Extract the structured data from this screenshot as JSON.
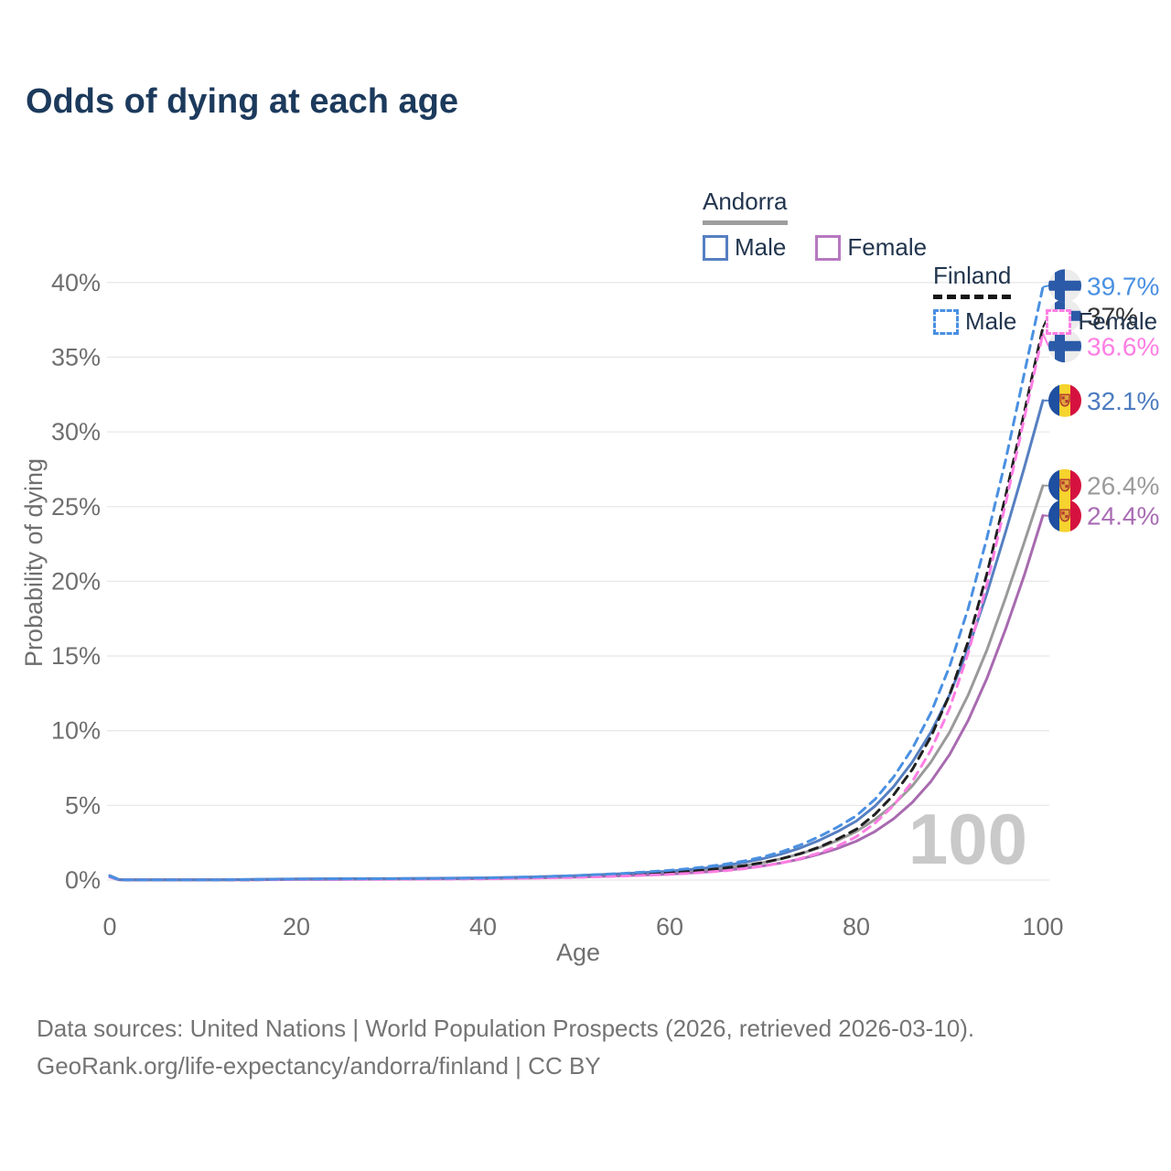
{
  "title": "Odds of dying at each age",
  "legend": {
    "groups": [
      {
        "country": "Andorra",
        "line_style": "solid",
        "underline_color": "#9e9e9e",
        "items": [
          {
            "label": "Male",
            "color": "#567fc1"
          },
          {
            "label": "Female",
            "color": "#b778c0"
          }
        ]
      },
      {
        "country": "Finland",
        "line_style": "dashed",
        "underline_color": "#161616",
        "items": [
          {
            "label": "Male",
            "color": "#4a90e2"
          },
          {
            "label": "Female",
            "color": "#ff7ee3"
          }
        ]
      }
    ]
  },
  "chart_data": {
    "type": "line",
    "xlabel": "Age",
    "ylabel": "Probability of dying",
    "xlim": [
      0,
      100
    ],
    "ylim": [
      0,
      40
    ],
    "x_ticks": [
      0,
      20,
      40,
      60,
      80,
      100
    ],
    "y_ticks": [
      0,
      5,
      10,
      15,
      20,
      25,
      30,
      35,
      40
    ],
    "y_tick_suffix": "%",
    "grid": "horizontal",
    "watermark": "100",
    "ages": [
      0,
      1,
      2,
      5,
      10,
      15,
      20,
      25,
      30,
      35,
      40,
      45,
      50,
      55,
      60,
      62,
      64,
      66,
      68,
      70,
      72,
      74,
      76,
      78,
      80,
      82,
      84,
      86,
      88,
      90,
      92,
      94,
      96,
      98,
      100
    ],
    "series": [
      {
        "id": "andorra-total",
        "country": "Andorra",
        "sex": "Both sexes",
        "color": "#9a9a9a",
        "dash": false,
        "flag": "andorra",
        "end_label": "26.4%",
        "end_label_color": "#9b9b9b",
        "values": [
          0.27,
          0.03,
          0.02,
          0.02,
          0.02,
          0.03,
          0.06,
          0.07,
          0.08,
          0.1,
          0.12,
          0.17,
          0.25,
          0.36,
          0.5,
          0.58,
          0.68,
          0.81,
          0.97,
          1.17,
          1.43,
          1.76,
          2.16,
          2.65,
          3.25,
          4.05,
          5.05,
          6.3,
          7.9,
          9.9,
          12.4,
          15.4,
          18.9,
          22.6,
          26.4
        ]
      },
      {
        "id": "andorra-female",
        "country": "Andorra",
        "sex": "Female",
        "color": "#a86ab0",
        "dash": false,
        "flag": "andorra",
        "end_label": "24.4%",
        "end_label_color": "#a96cb4",
        "values": [
          0.24,
          0.02,
          0.01,
          0.01,
          0.01,
          0.02,
          0.04,
          0.05,
          0.06,
          0.08,
          0.1,
          0.14,
          0.2,
          0.29,
          0.4,
          0.47,
          0.55,
          0.66,
          0.79,
          0.95,
          1.15,
          1.41,
          1.73,
          2.12,
          2.6,
          3.25,
          4.1,
          5.2,
          6.6,
          8.4,
          10.7,
          13.5,
          16.8,
          20.4,
          24.4
        ]
      },
      {
        "id": "andorra-male",
        "country": "Andorra",
        "sex": "Male",
        "color": "#567fc1",
        "dash": false,
        "flag": "andorra",
        "end_label": "32.1%",
        "end_label_color": "#4d7cc0",
        "values": [
          0.3,
          0.03,
          0.02,
          0.02,
          0.02,
          0.04,
          0.08,
          0.09,
          0.1,
          0.12,
          0.15,
          0.21,
          0.3,
          0.43,
          0.6,
          0.7,
          0.82,
          0.98,
          1.18,
          1.43,
          1.75,
          2.15,
          2.65,
          3.25,
          3.95,
          4.95,
          6.25,
          7.9,
          9.9,
          12.4,
          15.5,
          19.2,
          23.3,
          27.6,
          32.1
        ]
      },
      {
        "id": "finland-total",
        "country": "Finland",
        "sex": "Both sexes",
        "color": "#1f1f1f",
        "dash": true,
        "flag": "finland",
        "end_label": "37%",
        "end_label_color": "#333333",
        "values": [
          0.22,
          0.02,
          0.01,
          0.01,
          0.01,
          0.02,
          0.05,
          0.06,
          0.07,
          0.09,
          0.11,
          0.16,
          0.24,
          0.35,
          0.5,
          0.58,
          0.68,
          0.81,
          0.97,
          1.17,
          1.43,
          1.77,
          2.2,
          2.75,
          3.4,
          4.4,
          5.7,
          7.4,
          9.6,
          12.4,
          16.0,
          20.5,
          25.7,
          31.3,
          37.0
        ]
      },
      {
        "id": "finland-female",
        "country": "Finland",
        "sex": "Female",
        "color": "#ff7ee3",
        "dash": true,
        "flag": "finland",
        "end_label": "36.6%",
        "end_label_color": "#ff7ee3",
        "values": [
          0.2,
          0.02,
          0.01,
          0.01,
          0.01,
          0.02,
          0.03,
          0.04,
          0.05,
          0.06,
          0.08,
          0.12,
          0.18,
          0.27,
          0.38,
          0.45,
          0.53,
          0.63,
          0.76,
          0.93,
          1.15,
          1.44,
          1.81,
          2.28,
          2.9,
          3.8,
          5.0,
          6.6,
          8.7,
          11.5,
          15.2,
          19.8,
          25.2,
          30.9,
          36.6
        ]
      },
      {
        "id": "finland-male",
        "country": "Finland",
        "sex": "Male",
        "color": "#4a90e2",
        "dash": true,
        "flag": "finland",
        "end_label": "39.7%",
        "end_label_color": "#4a90e2",
        "values": [
          0.25,
          0.02,
          0.01,
          0.01,
          0.01,
          0.03,
          0.07,
          0.08,
          0.09,
          0.11,
          0.14,
          0.2,
          0.3,
          0.45,
          0.65,
          0.76,
          0.9,
          1.07,
          1.28,
          1.55,
          1.9,
          2.35,
          2.9,
          3.55,
          4.3,
          5.4,
          6.9,
          8.8,
          11.2,
          14.3,
          18.2,
          22.9,
          28.1,
          33.9,
          39.7
        ]
      }
    ],
    "flag_colors": {
      "finland_cross": "#2b5aa8",
      "finland_bg": "#ececec",
      "andorra_blue": "#1e4fa1",
      "andorra_yellow": "#f6d32e",
      "andorra_red": "#d5123f",
      "andorra_emblem": "#e0a33c",
      "andorra_emblem_border": "#b03a2e"
    },
    "axis_text_color": "#6f6f6f",
    "grid_color": "#e8e8e8",
    "watermark_color": "#c9c9c9"
  },
  "footer": {
    "line1": "Data sources: United Nations | World Population Prospects (2026, retrieved 2026-03-10).",
    "line2": "GeoRank.org/life-expectancy/andorra/finland | CC BY"
  }
}
